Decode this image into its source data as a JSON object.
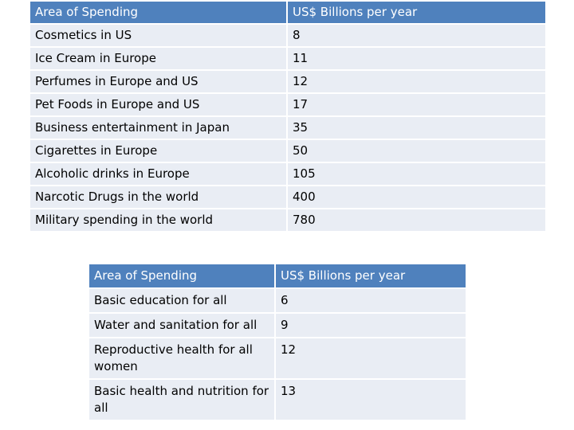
{
  "table_one": {
    "header": [
      "Area of Spending",
      "US$ Billions per year"
    ],
    "rows": [
      [
        "Cosmetics in US",
        "8"
      ],
      [
        "Ice Cream in Europe",
        "11"
      ],
      [
        "Perfumes in Europe and US",
        "12"
      ],
      [
        "Pet Foods in Europe and US",
        "17"
      ],
      [
        "Business entertainment in Japan",
        "35"
      ],
      [
        "Cigarettes in Europe",
        "50"
      ],
      [
        "Alcoholic drinks in Europe",
        "105"
      ],
      [
        "Narcotic Drugs in the world",
        "400"
      ],
      [
        "Military spending in the world",
        "780"
      ]
    ]
  },
  "table_two": {
    "header": [
      "Area of Spending",
      "US$ Billions per year"
    ],
    "rows": [
      [
        "Basic education for all",
        "6"
      ],
      [
        "Water and sanitation for all",
        "9"
      ],
      [
        "Reproductive health for all women",
        "12"
      ],
      [
        "Basic health and nutrition for all",
        "13"
      ]
    ]
  },
  "colors": {
    "header_fill": "#4f81bd",
    "header_text": "#ffffff",
    "row_fill": "#e9edf4"
  }
}
